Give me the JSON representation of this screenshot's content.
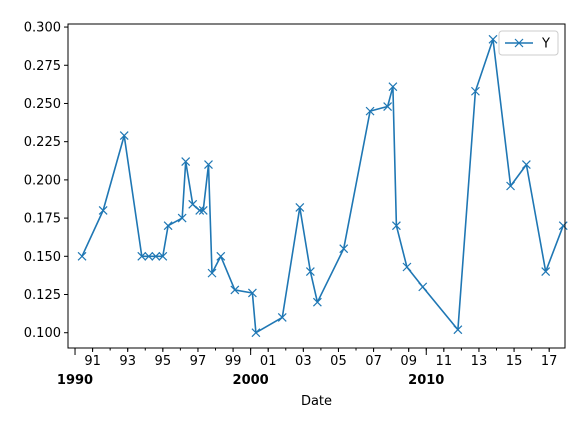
{
  "chart_data": {
    "type": "line",
    "title": "",
    "xlabel": "Date",
    "ylabel": "",
    "xlim": [
      1989.6,
      2017.9
    ],
    "ylim": [
      0.09,
      0.302
    ],
    "grid": false,
    "legend": {
      "position": "top-right",
      "entries": [
        "Y"
      ]
    },
    "x_minor_ticks": [
      {
        "value": 1991,
        "label": "91"
      },
      {
        "value": 1993,
        "label": "93"
      },
      {
        "value": 1995,
        "label": "95"
      },
      {
        "value": 1997,
        "label": "97"
      },
      {
        "value": 1999,
        "label": "99"
      },
      {
        "value": 2001,
        "label": "01"
      },
      {
        "value": 2003,
        "label": "03"
      },
      {
        "value": 2005,
        "label": "05"
      },
      {
        "value": 2007,
        "label": "07"
      },
      {
        "value": 2009,
        "label": "09"
      },
      {
        "value": 2011,
        "label": "11"
      },
      {
        "value": 2013,
        "label": "13"
      },
      {
        "value": 2015,
        "label": "15"
      },
      {
        "value": 2017,
        "label": "17"
      }
    ],
    "x_major_ticks": [
      {
        "value": 1990,
        "label": "1990"
      },
      {
        "value": 2000,
        "label": "2000"
      },
      {
        "value": 2010,
        "label": "2010"
      }
    ],
    "y_ticks": [
      {
        "value": 0.1,
        "label": "0.100"
      },
      {
        "value": 0.125,
        "label": "0.125"
      },
      {
        "value": 0.15,
        "label": "0.150"
      },
      {
        "value": 0.175,
        "label": "0.175"
      },
      {
        "value": 0.2,
        "label": "0.200"
      },
      {
        "value": 0.225,
        "label": "0.225"
      },
      {
        "value": 0.25,
        "label": "0.250"
      },
      {
        "value": 0.275,
        "label": "0.275"
      },
      {
        "value": 0.3,
        "label": "0.300"
      }
    ],
    "series": [
      {
        "name": "Y",
        "color": "#1f77b4",
        "marker": "x",
        "x": [
          1990.4,
          1991.6,
          1992.8,
          1993.8,
          1994.2,
          1994.6,
          1995.0,
          1995.3,
          1996.1,
          1996.3,
          1996.7,
          1997.1,
          1997.3,
          1997.6,
          1997.8,
          1998.3,
          1999.1,
          2000.1,
          2000.3,
          2001.8,
          2002.8,
          2003.4,
          2003.8,
          2005.3,
          2006.8,
          2007.8,
          2008.1,
          2008.3,
          2008.9,
          2009.8,
          2011.8,
          2012.8,
          2013.8,
          2014.8,
          2015.7,
          2016.8,
          2017.8
        ],
        "y": [
          0.15,
          0.18,
          0.229,
          0.15,
          0.15,
          0.15,
          0.15,
          0.17,
          0.175,
          0.212,
          0.184,
          0.18,
          0.18,
          0.21,
          0.139,
          0.15,
          0.128,
          0.126,
          0.1,
          0.11,
          0.182,
          0.14,
          0.12,
          0.155,
          0.245,
          0.248,
          0.261,
          0.17,
          0.143,
          0.13,
          0.102,
          0.258,
          0.292,
          0.196,
          0.21,
          0.14,
          0.17
        ]
      }
    ]
  }
}
